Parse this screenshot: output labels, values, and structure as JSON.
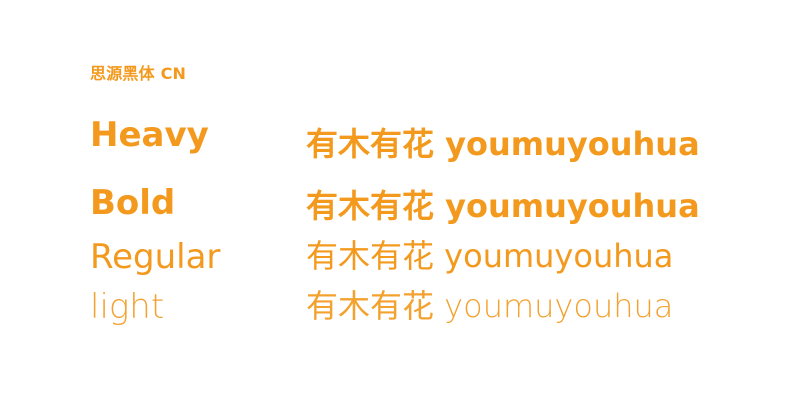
{
  "font_name": "思源黑体 CN",
  "accent_color": "#f39a1e",
  "rows": [
    {
      "weight": "Heavy",
      "sample": "有木有花 youmuyouhua"
    },
    {
      "weight": "Bold",
      "sample": "有木有花 youmuyouhua"
    },
    {
      "weight": "Regular",
      "sample": "有木有花 youmuyouhua"
    },
    {
      "weight": "light",
      "sample": "有木有花 youmuyouhua"
    }
  ]
}
